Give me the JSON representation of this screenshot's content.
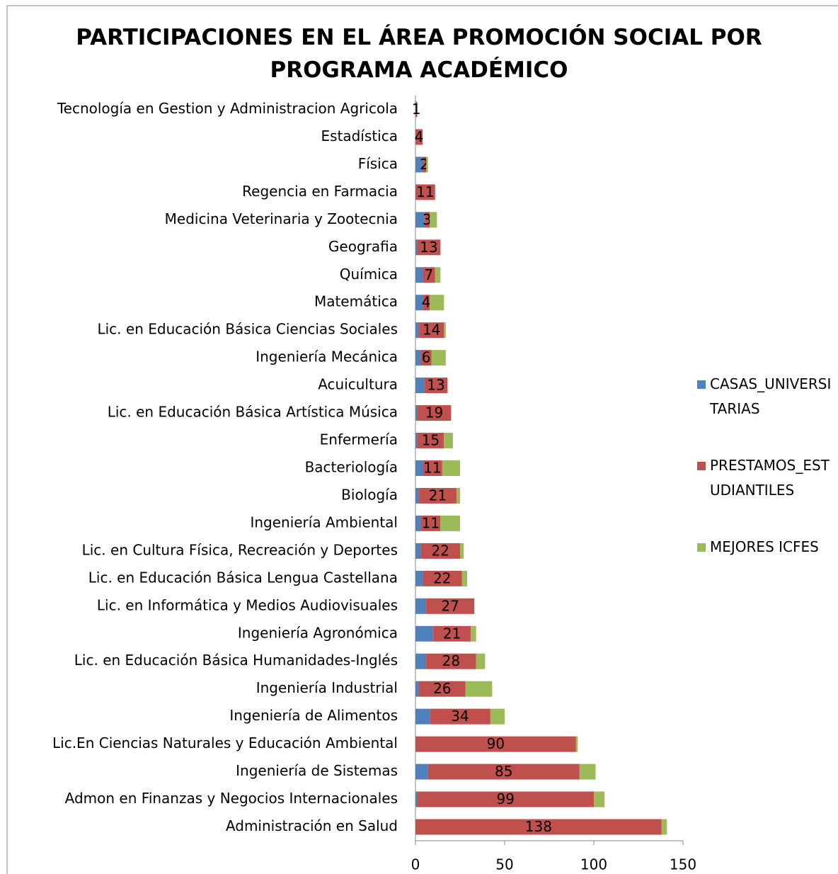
{
  "chart_data": {
    "type": "stacked_barh",
    "title": "PARTICIPACIONES EN EL ÁREA PROMOCIÓN SOCIAL POR PROGRAMA ACADÉMICO",
    "categories": [
      "Tecnología en Gestion y Administracion Agricola",
      "Estadística",
      "Física",
      "Regencia en Farmacia",
      "Medicina Veterinaria y Zootecnia",
      "Geografia",
      "Química",
      "Matemática",
      "Lic. en Educación Básica Ciencias Sociales",
      "Ingeniería Mecánica",
      "Acuicultura",
      "Lic. en Educación Básica Artística Música",
      "Enfermería",
      "Bacteriología",
      "Biología",
      "Ingeniería Ambiental",
      "Lic. en Cultura Física, Recreación y Deportes",
      "Lic. en Educación Básica Lengua Castellana",
      "Lic. en Informática y Medios Audiovisuales",
      "Ingeniería Agronómica",
      "Lic. en Educación Básica Humanidades-Inglés",
      "Ingeniería Industrial",
      "Ingeniería de Alimentos",
      "Lic.En Ciencias Naturales y Educación Ambiental",
      "Ingeniería de Sistemas",
      "Admon en Finanzas y Negocios Internacionales",
      "Administración en Salud"
    ],
    "series": [
      {
        "name": "CASAS_UNIVERSITARIAS",
        "color": "#4f81bd",
        "values": [
          0,
          0,
          4,
          0,
          5,
          1,
          4,
          4,
          2,
          3,
          5,
          1,
          1,
          4,
          2,
          3,
          3,
          4,
          6,
          10,
          6,
          2,
          8,
          0,
          7,
          1,
          0
        ]
      },
      {
        "name": "PRESTAMOS_ESTUDIANTILES",
        "color": "#c0504d",
        "values": [
          1,
          4,
          2,
          11,
          3,
          13,
          7,
          4,
          14,
          6,
          13,
          19,
          15,
          11,
          21,
          11,
          22,
          22,
          27,
          21,
          28,
          26,
          34,
          90,
          85,
          99,
          138
        ],
        "labeled": true
      },
      {
        "name": "MEJORES ICFES",
        "color": "#9bbb59",
        "values": [
          0,
          0,
          1,
          0,
          4,
          0,
          3,
          8,
          1,
          8,
          0,
          0,
          5,
          10,
          2,
          11,
          2,
          3,
          0,
          3,
          5,
          15,
          8,
          1,
          9,
          6,
          3
        ]
      }
    ],
    "xlim": [
      0,
      150
    ],
    "xticks": [
      0,
      50,
      100,
      150
    ],
    "legend": "right"
  }
}
